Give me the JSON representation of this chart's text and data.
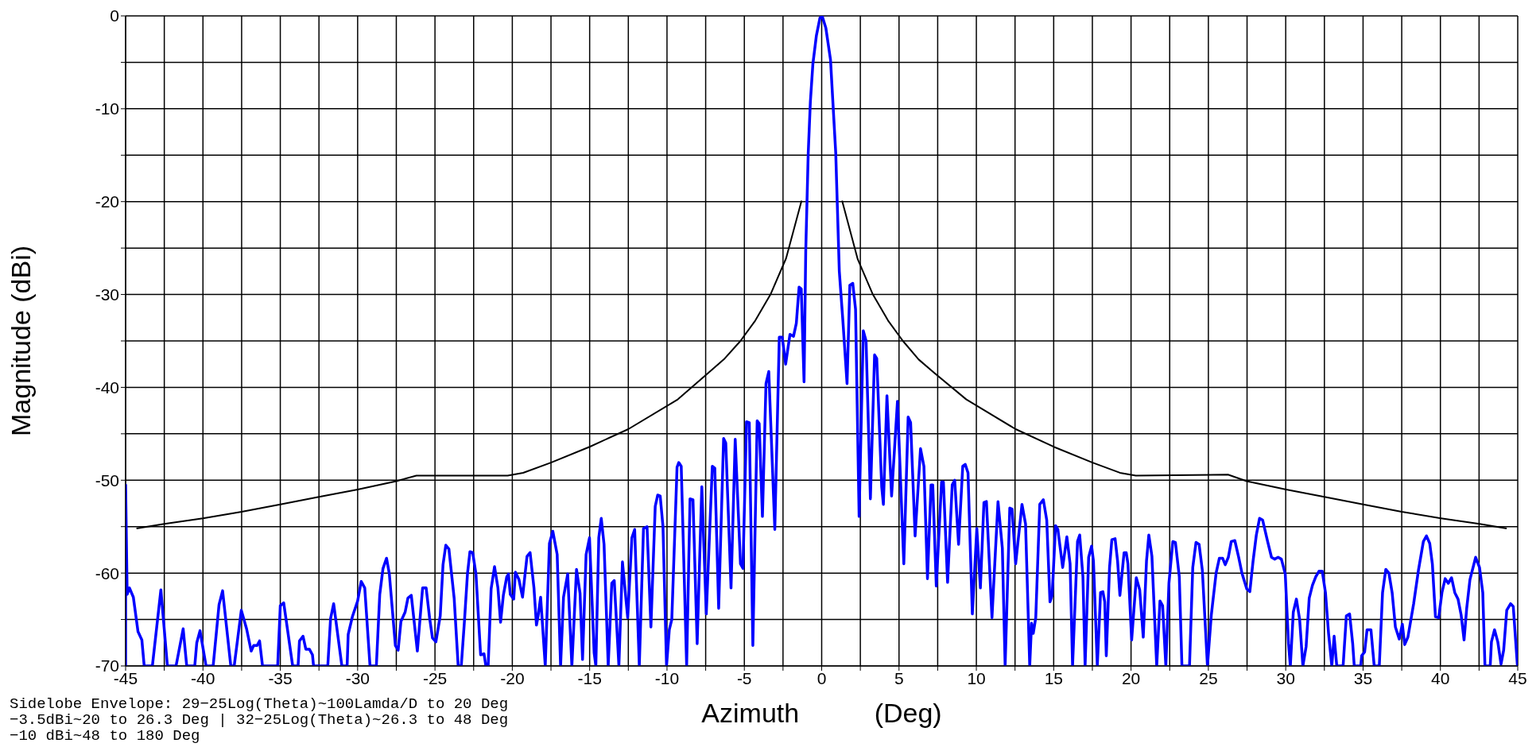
{
  "chart_data": {
    "type": "line",
    "xlabel": "Azimuth          (Deg)",
    "ylabel": "Magnitude      (dBi)",
    "annotations": [
      "Sidelobe Envelope: 29−25Log(Theta)~100Lamda/D to 20 Deg",
      "−3.5dBi~20 to 26.3 Deg | 32−25Log(Theta)~26.3 to 48 Deg",
      "−10 dBi~48 to 180 Deg"
    ],
    "xlim": [
      -45,
      45
    ],
    "ylim": [
      -70,
      0
    ],
    "xticks": [
      -45,
      {
        "value": -42.5,
        "label": null
      },
      -40,
      {
        "value": -37.5,
        "label": null
      },
      -35,
      {
        "value": -32.5,
        "label": null
      },
      -30,
      {
        "value": -27.5,
        "label": null
      },
      -25,
      {
        "value": -22.5,
        "label": null
      },
      -20,
      {
        "value": -17.5,
        "label": null
      },
      -15,
      {
        "value": -12.5,
        "label": null
      },
      -10,
      {
        "value": -7.5,
        "label": null
      },
      -5,
      {
        "value": -2.5,
        "label": null
      },
      0,
      {
        "value": 2.5,
        "label": null
      },
      5,
      {
        "value": 7.5,
        "label": null
      },
      10,
      {
        "value": 12.5,
        "label": null
      },
      15,
      {
        "value": 17.5,
        "label": null
      },
      20,
      {
        "value": 22.5,
        "label": null
      },
      25,
      {
        "value": 27.5,
        "label": null
      },
      30,
      {
        "value": 32.5,
        "label": null
      },
      35,
      {
        "value": 37.5,
        "label": null
      },
      40,
      {
        "value": 42.5,
        "label": null
      },
      45
    ],
    "yticks": [
      -70,
      {
        "value": -65,
        "label": null
      },
      -60,
      {
        "value": -55,
        "label": null
      },
      -50,
      {
        "value": -45,
        "label": null
      },
      -40,
      {
        "value": -35,
        "label": null
      },
      -30,
      {
        "value": -25,
        "label": null
      },
      -20,
      {
        "value": -15,
        "label": null
      },
      -10,
      {
        "value": -5,
        "label": null
      },
      0
    ],
    "grid": true,
    "marker": "none",
    "series": [
      {
        "color": "#0000ff",
        "x": [
          -45,
          -45,
          -44.9,
          -44.75,
          -44.5,
          -44.2,
          -43.95,
          -43.8,
          -43.27,
          -42.72,
          -42.3,
          -41.74,
          -41.28,
          -41.05,
          -40.53,
          -40.4,
          -40.19,
          -39.8,
          -39.34,
          -38.96,
          -38.73,
          -38.2,
          -37.98,
          -37.52,
          -37.18,
          -36.88,
          -36.72,
          -36.5,
          -36.34,
          -36.15,
          -35.17,
          -35.0,
          -34.78,
          -34.2,
          -33.85,
          -33.76,
          -33.53,
          -33.35,
          -33.12,
          -32.92,
          -32.85,
          -31.93,
          -31.75,
          -31.55,
          -31.02,
          -30.68,
          -30.61,
          -30.34,
          -30.0,
          -29.77,
          -29.54,
          -29.2,
          -28.79,
          -28.57,
          -28.36,
          -28.13,
          -27.95,
          -27.56,
          -27.38,
          -27.2,
          -26.93,
          -26.75,
          -26.53,
          -26.14,
          -25.8,
          -25.57,
          -25.35,
          -25.16,
          -24.94,
          -24.66,
          -24.48,
          -24.3,
          -24.1,
          -23.76,
          -23.5,
          -23.3,
          -23.1,
          -22.9,
          -22.74,
          -22.56,
          -22.35,
          -22.05,
          -21.83,
          -21.72,
          -21.56,
          -21.37,
          -21.15,
          -20.93,
          -20.76,
          -20.58,
          -20.36,
          -20.25,
          -20.13,
          -19.91,
          -19.8,
          -19.57,
          -19.34,
          -19.05,
          -18.85,
          -18.6,
          -18.44,
          -18.33,
          -18.17,
          -18.06,
          -17.87,
          -17.6,
          -17.38,
          -17.1,
          -16.88,
          -16.69,
          -16.42,
          -16.15,
          -15.85,
          -15.62,
          -15.46,
          -15.23,
          -15.01,
          -14.71,
          -14.6,
          -14.41,
          -14.25,
          -14.07,
          -13.8,
          -13.57,
          -13.41,
          -13.11,
          -12.88,
          -12.54,
          -12.27,
          -12.09,
          -11.79,
          -11.52,
          -11.29,
          -11.04,
          -10.76,
          -10.6,
          -10.44,
          -10.26,
          -10.03,
          -9.85,
          -9.69,
          -9.35,
          -9.24,
          -9.08,
          -8.73,
          -8.51,
          -8.32,
          -8.05,
          -7.75,
          -7.46,
          -7.07,
          -6.91,
          -6.66,
          -6.34,
          -6.2,
          -5.86,
          -5.59,
          -5.25,
          -5.09,
          -4.86,
          -4.68,
          -4.45,
          -4.17,
          -4.04,
          -3.83,
          -3.6,
          -3.42,
          -3.03,
          -2.74,
          -2.55,
          -2.33,
          -2.05,
          -1.82,
          -1.64,
          -1.46,
          -1.32,
          -1.14,
          -1.03,
          -0.87,
          -0.73,
          -0.57,
          -0.34,
          -0.11,
          0.05,
          0.27,
          0.57,
          0.91,
          1.14,
          1.37,
          1.64,
          1.82,
          2.01,
          2.19,
          2.42,
          2.69,
          2.87,
          3.15,
          3.42,
          3.56,
          3.88,
          3.99,
          4.22,
          4.52,
          4.9,
          5.31,
          5.59,
          5.75,
          6.04,
          6.39,
          6.61,
          6.84,
          7.07,
          7.18,
          7.41,
          7.75,
          7.87,
          8.14,
          8.44,
          8.6,
          8.85,
          9.12,
          9.28,
          9.46,
          9.74,
          10.03,
          10.26,
          10.49,
          10.65,
          11.01,
          11.4,
          11.68,
          11.86,
          12.16,
          12.31,
          12.54,
          12.95,
          13.18,
          13.45,
          13.57,
          13.68,
          13.84,
          14.1,
          14.33,
          14.55,
          14.76,
          14.9,
          15.12,
          15.27,
          15.58,
          15.85,
          16.06,
          16.22,
          16.54,
          16.68,
          16.89,
          17.03,
          17.26,
          17.45,
          17.57,
          17.82,
          18.03,
          18.18,
          18.3,
          18.4,
          18.61,
          18.76,
          18.97,
          19.13,
          19.28,
          19.55,
          19.69,
          19.8,
          20.04,
          20.34,
          20.56,
          20.79,
          21.0,
          21.15,
          21.35,
          21.66,
          21.87,
          22.04,
          22.25,
          22.45,
          22.7,
          22.87,
          23.12,
          23.29,
          23.78,
          23.99,
          24.2,
          24.4,
          24.61,
          24.94,
          25.19,
          25.5,
          25.71,
          25.92,
          26.09,
          26.29,
          26.48,
          26.71,
          26.96,
          27.17,
          27.48,
          27.68,
          27.89,
          28.1,
          28.31,
          28.51,
          28.83,
          29.08,
          29.28,
          29.51,
          29.72,
          29.97,
          30.18,
          30.3,
          30.49,
          30.69,
          30.9,
          31.11,
          31.32,
          31.52,
          31.73,
          31.94,
          32.15,
          32.36,
          32.57,
          32.77,
          32.98,
          33.13,
          33.3,
          33.71,
          33.92,
          34.13,
          34.33,
          34.43,
          34.85,
          34.91,
          35.1,
          35.26,
          35.51,
          35.72,
          36.05,
          36.26,
          36.47,
          36.67,
          36.88,
          37.09,
          37.34,
          37.54,
          37.69,
          37.9,
          38.27,
          38.58,
          38.9,
          39.1,
          39.31,
          39.48,
          39.68,
          39.89,
          40.1,
          40.31,
          40.51,
          40.72,
          40.93,
          41.14,
          41.34,
          41.53,
          41.7,
          41.91,
          42.28,
          42.53,
          42.74,
          42.88,
          43.22,
          43.3,
          43.5,
          43.71,
          43.92,
          44.09,
          44.29,
          44.54,
          44.71,
          44.98
        ],
        "values": [
          -70,
          -50.5,
          -62.3,
          -61.6,
          -62.6,
          -66.3,
          -67.2,
          -70,
          -70,
          -61.8,
          -70,
          -70,
          -66.0,
          -70,
          -70,
          -67.5,
          -66.2,
          -70,
          -70,
          -63.4,
          -61.9,
          -70,
          -70,
          -64.0,
          -66.0,
          -68.4,
          -67.8,
          -67.8,
          -67.3,
          -70,
          -70,
          -63.5,
          -63.2,
          -70,
          -70,
          -67.3,
          -66.8,
          -68.2,
          -68.2,
          -68.8,
          -70,
          -70,
          -64.9,
          -63.3,
          -70,
          -70,
          -66.6,
          -64.7,
          -63.0,
          -60.9,
          -61.6,
          -70,
          -70,
          -62.3,
          -59.5,
          -58.4,
          -60.1,
          -67.8,
          -68.3,
          -65.2,
          -64.2,
          -62.7,
          -62.4,
          -68.4,
          -61.6,
          -61.6,
          -64.8,
          -67.0,
          -67.4,
          -64.6,
          -59.1,
          -57.0,
          -57.4,
          -62.7,
          -70,
          -70,
          -65.3,
          -60.1,
          -57.7,
          -57.8,
          -60.1,
          -68.8,
          -68.7,
          -69.9,
          -69.9,
          -61.7,
          -59.3,
          -61.6,
          -65.3,
          -62.4,
          -60.4,
          -60.1,
          -62.3,
          -62.8,
          -59.9,
          -60.7,
          -62.6,
          -58.2,
          -57.8,
          -61.6,
          -65.6,
          -64.6,
          -62.6,
          -65.3,
          -70,
          -56.8,
          -55.5,
          -58,
          -70,
          -62.6,
          -60.1,
          -70,
          -59.6,
          -62.2,
          -69.3,
          -58.0,
          -56.2,
          -68.6,
          -70,
          -56.2,
          -54.1,
          -56.9,
          -70,
          -61.1,
          -60.8,
          -70,
          -58.8,
          -64.8,
          -56.2,
          -55.3,
          -70,
          -55.2,
          -55.0,
          -65.8,
          -52.8,
          -51.6,
          -51.7,
          -55.0,
          -70,
          -66.1,
          -65.0,
          -48.6,
          -48.1,
          -48.5,
          -70,
          -52.0,
          -52.1,
          -67.6,
          -50.7,
          -64.4,
          -48.5,
          -48.7,
          -63.8,
          -45.5,
          -46.0,
          -61.6,
          -45.6,
          -59.0,
          -59.5,
          -43.7,
          -43.8,
          -67.8,
          -43.6,
          -43.9,
          -53.9,
          -39.6,
          -38.3,
          -55.3,
          -34.6,
          -34.6,
          -37.5,
          -34.3,
          -34.5,
          -33.1,
          -29.2,
          -29.4,
          -39.4,
          -25.3,
          -14.8,
          -9.2,
          -5.2,
          -2.1,
          -0.2,
          -0.1,
          -1.3,
          -4.7,
          -14.8,
          -27.5,
          -32.8,
          -39.6,
          -29.0,
          -28.8,
          -31.6,
          -53.9,
          -33.9,
          -35.0,
          -52.0,
          -36.5,
          -36.9,
          -50.7,
          -52.6,
          -40.9,
          -51.7,
          -41.5,
          -59.0,
          -43.2,
          -43.8,
          -56.0,
          -46.6,
          -48.5,
          -60.6,
          -50.5,
          -50.5,
          -61.4,
          -50.2,
          -50.2,
          -61.0,
          -50.5,
          -50.0,
          -56.9,
          -48.5,
          -48.3,
          -49.2,
          -64.4,
          -55.2,
          -61.6,
          -52.4,
          -52.3,
          -64.8,
          -52.3,
          -57.3,
          -70,
          -53.0,
          -53.1,
          -59.0,
          -52.6,
          -54.7,
          -70,
          -65.4,
          -66.5,
          -64.8,
          -52.6,
          -52.1,
          -54.3,
          -63.1,
          -62.4,
          -54.9,
          -55.3,
          -59.4,
          -56.1,
          -59.0,
          -70,
          -56.6,
          -55.9,
          -60.4,
          -70,
          -58.3,
          -57.1,
          -58.7,
          -70,
          -62.1,
          -62.0,
          -63.1,
          -68.9,
          -59.4,
          -56.4,
          -56.3,
          -58.7,
          -62.4,
          -57.8,
          -57.8,
          -59.0,
          -67.2,
          -60.5,
          -61.8,
          -66.9,
          -58.7,
          -55.9,
          -58.2,
          -70,
          -63.0,
          -63.5,
          -70,
          -61.1,
          -56.6,
          -56.7,
          -60.4,
          -70,
          -70,
          -59.4,
          -56.7,
          -56.9,
          -59.7,
          -70,
          -64.5,
          -60.0,
          -58.4,
          -58.4,
          -59.1,
          -58.3,
          -56.6,
          -56.5,
          -58.3,
          -60.0,
          -61.7,
          -62.0,
          -58.7,
          -55.9,
          -54.1,
          -54.3,
          -56.6,
          -58.3,
          -58.5,
          -58.3,
          -58.5,
          -60.1,
          -67.6,
          -70,
          -64.2,
          -62.8,
          -65.0,
          -70,
          -67.9,
          -62.7,
          -61.3,
          -60.4,
          -59.8,
          -59.8,
          -62.1,
          -66.5,
          -70,
          -66.8,
          -70,
          -70,
          -64.6,
          -64.4,
          -67.6,
          -70,
          -70,
          -68.9,
          -68.5,
          -66.1,
          -66.1,
          -70,
          -70,
          -62.1,
          -59.6,
          -60.0,
          -62.1,
          -65.8,
          -67.1,
          -65.5,
          -67.7,
          -66.9,
          -63.3,
          -59.7,
          -56.6,
          -56.0,
          -56.8,
          -59.0,
          -64.7,
          -64.8,
          -62.1,
          -60.6,
          -61.1,
          -60.5,
          -62.1,
          -62.8,
          -64.5,
          -67.2,
          -63.8,
          -60.7,
          -58.3,
          -59.4,
          -62.1,
          -70,
          -70,
          -67.4,
          -66.1,
          -67.4,
          -69.8,
          -68.3,
          -64.0,
          -63.3,
          -63.6,
          -70
        ]
      },
      {
        "color": "#000000",
        "x": [
          -44.3,
          -42.5,
          -40,
          -37.5,
          -35,
          -32.5,
          -30,
          -27.5,
          -26.2,
          -20.3,
          -19.3,
          -17.5,
          -15,
          -12.5,
          -9.3,
          -7.3,
          -6.27,
          -5.25,
          -4.29,
          -3.31,
          -2.3,
          -1.3,
          0,
          1.32,
          2.33,
          3.31,
          4.29,
          5.25,
          6.27,
          7.25,
          9.35,
          12.54,
          15,
          17.51,
          19.28,
          20.31,
          26.27,
          27.48,
          30.03,
          32.5,
          35.01,
          37.5,
          40.04,
          42.53,
          44.29
        ],
        "values": [
          -55.2,
          -54.7,
          -54.1,
          -53.4,
          -52.6,
          -51.8,
          -51.0,
          -50.1,
          -49.5,
          -49.5,
          -49.2,
          -48.1,
          -46.4,
          -44.5,
          -41.3,
          -38.4,
          -36.9,
          -35.0,
          -32.8,
          -30.0,
          -26.1,
          -19.9,
          null,
          -19.9,
          -26.2,
          -30.0,
          -32.8,
          -35.0,
          -37.0,
          -38.4,
          -41.3,
          -44.5,
          -46.4,
          -48.1,
          -49.2,
          -49.5,
          -49.4,
          -50.1,
          -51.0,
          -51.8,
          -52.6,
          -53.4,
          -54.1,
          -54.7,
          -55.2
        ]
      }
    ]
  }
}
